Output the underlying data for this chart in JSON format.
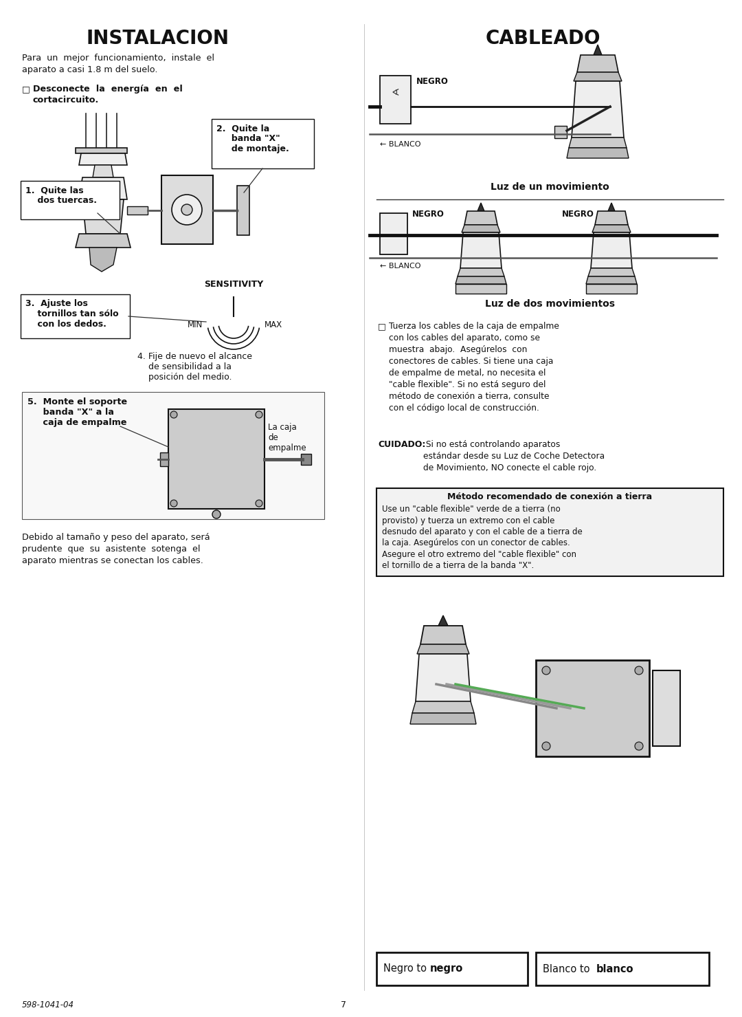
{
  "title_left": "INSTALACION",
  "title_right": "CABLEADO",
  "bg_color": "#ffffff",
  "text_color": "#111111",
  "page_number": "7",
  "footer_code": "598-1041-04",
  "figsize": [
    10.8,
    14.79
  ],
  "dpi": 100,
  "left": {
    "intro": "Para  un  mejor  funcionamiento,  instale  el\naparato a casi 1.8 m del suelo.",
    "desconecte_line1": "Desconecte  la  energía  en  el",
    "desconecte_line2": "cortacircuito.",
    "step1": "1.  Quite las\n    dos tuercas.",
    "step2": "2.  Quite la\n     banda \"X\"\n     de montaje.",
    "step3_a": "3.  Ajuste los",
    "step3_b": "    tornillos tan sólo",
    "step3_c": "    con los dedos.",
    "sensitivity": "SENSITIVITY",
    "min": "MIN",
    "max": "MAX",
    "step4": "4. Fije de nuevo el alcance\n    de sensibilidad a la\n    posición del medio.",
    "step5": "5.  Monte el soporte\n     banda \"X\" a la\n     caja de empalme",
    "caja": "La caja\nde\nempalme",
    "bottom": "Debido al tamaño y peso del aparato, será\nprudente  que  su  asistente  sotenga  el\naparato mientras se conectan los cables."
  },
  "right": {
    "negro": "NEGRO",
    "blanco": "← BLANCO",
    "cap1": "Luz de un movimiento",
    "negro2a": "NEGRO",
    "negro2b": "NEGRO",
    "blanco2": "← BLANCO",
    "cap2": "Luz de dos movimientos",
    "bullet_tuerza": "□",
    "tuerza": "Tuerza los cables de la caja de empalme\ncon los cables del aparato, como se\nmuestra  abajo.  Asegúrelos  con\nconectores de cables. Si tiene una caja\nde empalme de metal, no necesita el\n\"cable flexible\". Si no está seguro del\nmétodo de conexión a tierra, consulte\ncon el código local de construcción.",
    "cuidado_bold": "CUIDADO:",
    "cuidado_rest": " Si no está controlando aparatos\nestándar desde su Luz de Coche Detectora\nde Movimiento, NO conecte el cable rojo.",
    "grnd_title": "Método recomendado de conexión a tierra",
    "grnd_body": "Use un \"cable flexible\" verde de a tierra (no\nprovisto) y tuerza un extremo con el cable\ndesnudo del aparato y con el cable de a tierra de\nla caja. Asegúrelos con un conector de cables.\nAsegure el otro extremo del \"cable flexible\" con\nel tornillo de a tierra de la banda \"X\".",
    "footer_l_normal": "Negro to ",
    "footer_l_bold": "negro",
    "footer_r_normal": "Blanco to ",
    "footer_r_bold": "blanco"
  }
}
